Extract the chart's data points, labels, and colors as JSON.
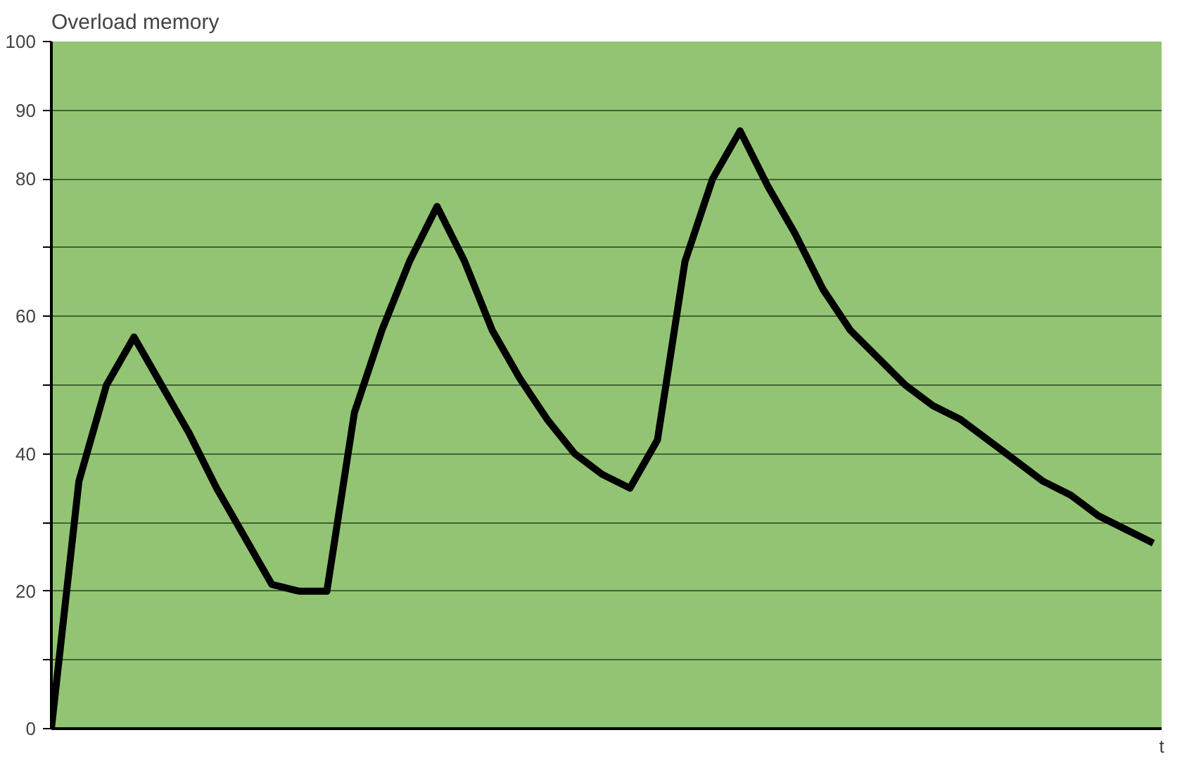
{
  "chart_data": {
    "type": "line",
    "ylabel": "Overload memory",
    "xlabel": "t",
    "categories": [
      null,
      null,
      null,
      null,
      null,
      null,
      null,
      null,
      null,
      null,
      null,
      null,
      null,
      null,
      null,
      null,
      null,
      null,
      null,
      null,
      null,
      null,
      null,
      null,
      null,
      null,
      null,
      null,
      null,
      null,
      null,
      null,
      null,
      null,
      null,
      null,
      null,
      null,
      null,
      null,
      null
    ],
    "series": [
      {
        "color": "#000000",
        "values": [
          0,
          36,
          50,
          57,
          50,
          43,
          35,
          28,
          21,
          20,
          20,
          46,
          58,
          68,
          76,
          68,
          58,
          51,
          45,
          40,
          37,
          35,
          42,
          68,
          80,
          87,
          79,
          72,
          64,
          58,
          54,
          50,
          47,
          45,
          42,
          39,
          36,
          34,
          31,
          29,
          27
        ]
      }
    ],
    "ylim": [
      0,
      100
    ],
    "yticks": [
      0,
      {
        "value": 10,
        "label": null
      },
      20,
      {
        "value": 30,
        "label": null
      },
      40,
      {
        "value": 50,
        "label": null
      },
      60,
      {
        "value": 70,
        "label": null
      },
      80,
      90,
      100
    ],
    "tick_labels": "y",
    "grid": "y",
    "marker": "none",
    "line_style": "solid"
  }
}
